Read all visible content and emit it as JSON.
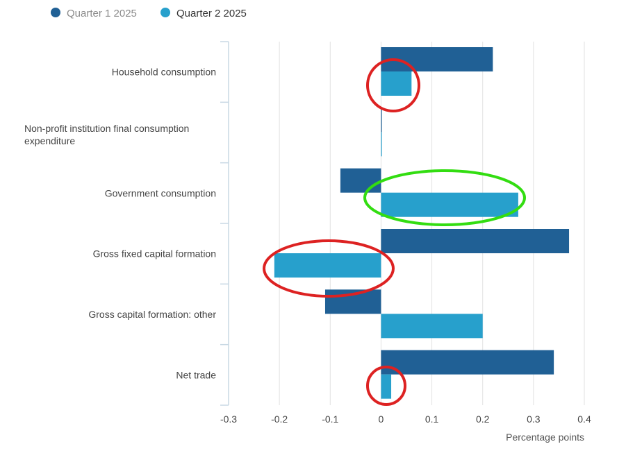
{
  "chart_data": {
    "type": "bar",
    "orientation": "horizontal",
    "categories": [
      "Household consumption",
      [
        "Non-profit institution final consumption",
        "expenditure"
      ],
      "Government consumption",
      "Gross fixed capital formation",
      "Gross capital formation: other",
      "Net trade"
    ],
    "series": [
      {
        "name": "Quarter 1 2025",
        "color": "#206095",
        "values": [
          0.22,
          0.0,
          -0.08,
          0.37,
          -0.11,
          0.34
        ]
      },
      {
        "name": "Quarter 2 2025",
        "color": "#27a0cc",
        "values": [
          0.06,
          0.0,
          0.27,
          -0.21,
          0.2,
          0.02
        ]
      }
    ],
    "xlim": [
      -0.3,
      0.4
    ],
    "xticks": [
      -0.3,
      -0.2,
      -0.1,
      0,
      0.1,
      0.2,
      0.3,
      0.4
    ],
    "xtick_labels": [
      "-0.3",
      "-0.2",
      "-0.1",
      "0",
      "0.1",
      "0.2",
      "0.3",
      "0.4"
    ],
    "xlabel": "Percentage points",
    "legend_position": "top-left",
    "grid": true,
    "annotations": [
      {
        "shape": "ellipse",
        "color": "#dd2222",
        "target": "Household consumption - Quarter 2 2025"
      },
      {
        "shape": "ellipse",
        "color": "#33dd11",
        "target": "Government consumption - Quarter 2 2025"
      },
      {
        "shape": "ellipse",
        "color": "#dd2222",
        "target": "Gross fixed capital formation - Quarter 2 2025"
      },
      {
        "shape": "ellipse",
        "color": "#dd2222",
        "target": "Net trade - Quarter 2 2025"
      }
    ]
  }
}
